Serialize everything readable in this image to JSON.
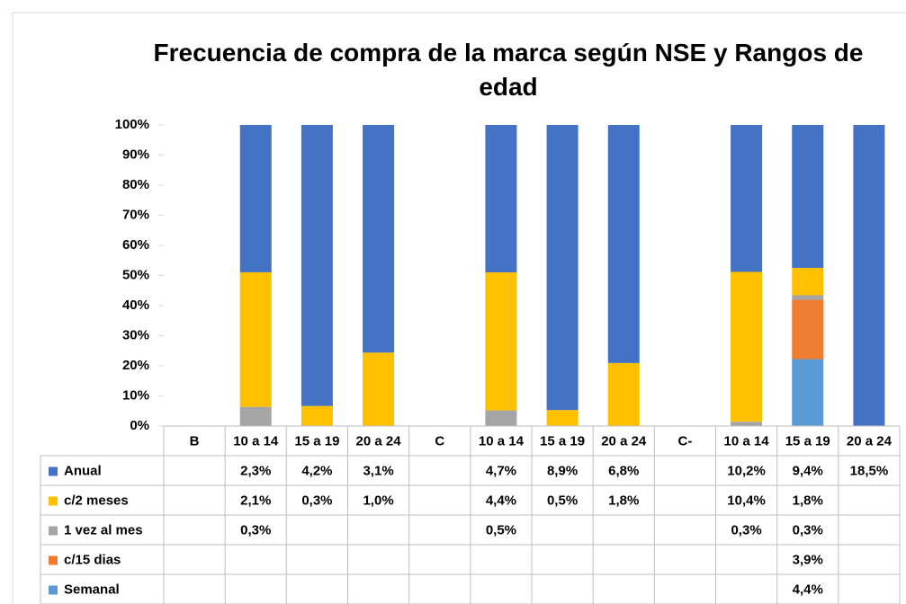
{
  "chart_data": {
    "type": "bar",
    "stacked": "percent",
    "title": "Frecuencia de compra de la marca según NSE y Rangos de edad",
    "categories": [
      "B",
      "10 a 14",
      "15 a 19",
      "20 a 24",
      "C",
      "10 a 14",
      "15 a 19",
      "20 a 24",
      "C-",
      "10 a 14",
      "15 a 19",
      "20 a 24"
    ],
    "ylim": [
      0,
      100
    ],
    "yticks": [
      {
        "value": 0,
        "label": "0%"
      },
      {
        "value": 10,
        "label": "10%"
      },
      {
        "value": 20,
        "label": "20%"
      },
      {
        "value": 30,
        "label": "30%"
      },
      {
        "value": 40,
        "label": "40%"
      },
      {
        "value": 50,
        "label": "50%"
      },
      {
        "value": 60,
        "label": "60%"
      },
      {
        "value": 70,
        "label": "70%"
      },
      {
        "value": 80,
        "label": "80%"
      },
      {
        "value": 90,
        "label": "90%"
      },
      {
        "value": 100,
        "label": "100%"
      }
    ],
    "series": [
      {
        "name": "Anual",
        "color": "#4472c4",
        "values": [
          null,
          2.3,
          4.2,
          3.1,
          null,
          4.7,
          8.9,
          6.8,
          null,
          10.2,
          9.4,
          18.5
        ],
        "value_labels": [
          null,
          "2,3%",
          "4,2%",
          "3,1%",
          null,
          "4,7%",
          "8,9%",
          "6,8%",
          null,
          "10,2%",
          "9,4%",
          "18,5%"
        ]
      },
      {
        "name": "c/2 meses",
        "color": "#ffc000",
        "values": [
          null,
          2.1,
          0.3,
          1.0,
          null,
          4.4,
          0.5,
          1.8,
          null,
          10.4,
          1.8,
          null
        ],
        "value_labels": [
          null,
          "2,1%",
          "0,3%",
          "1,0%",
          null,
          "4,4%",
          "0,5%",
          "1,8%",
          null,
          "10,4%",
          "1,8%",
          null
        ]
      },
      {
        "name": "1 vez al mes",
        "color": "#a5a5a5",
        "values": [
          null,
          0.3,
          null,
          null,
          null,
          0.5,
          null,
          null,
          null,
          0.3,
          0.3,
          null
        ],
        "value_labels": [
          null,
          "0,3%",
          null,
          null,
          null,
          "0,5%",
          null,
          null,
          null,
          "0,3%",
          "0,3%",
          null
        ]
      },
      {
        "name": "c/15 dias",
        "color": "#ed7d31",
        "values": [
          null,
          null,
          null,
          null,
          null,
          null,
          null,
          null,
          null,
          null,
          3.9,
          null
        ],
        "value_labels": [
          null,
          null,
          null,
          null,
          null,
          null,
          null,
          null,
          null,
          null,
          "3,9%",
          null
        ]
      },
      {
        "name": "Semanal",
        "color": "#5b9bd5",
        "values": [
          null,
          null,
          null,
          null,
          null,
          null,
          null,
          null,
          null,
          null,
          4.4,
          null
        ],
        "value_labels": [
          null,
          null,
          null,
          null,
          null,
          null,
          null,
          null,
          null,
          null,
          "4,4%",
          null
        ]
      }
    ]
  }
}
